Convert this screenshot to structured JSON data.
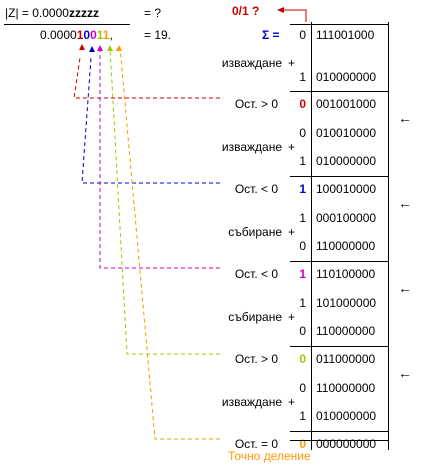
{
  "header": {
    "abs_z": "|Z| = 0.0000",
    "z_unknown": "zzzzz",
    "eq_q": "= ?",
    "prefix_result": "0.0000",
    "bits": [
      "1",
      "0",
      "0",
      "1",
      "1"
    ],
    "bits_colors": [
      "#cc0000",
      "#0000cc",
      "#cc00cc",
      "#99cc00",
      "#ff9900"
    ],
    "comma": ",",
    "eq_19": "= 19.",
    "question": "0/1 ?",
    "sigma": "Σ =",
    "sigma_sign": "0",
    "sigma_value": "111001000"
  },
  "rows": [
    {
      "op": "изваждане",
      "plus": "+",
      "sign": "1",
      "value": "010000000"
    },
    {
      "label": "Ост. > 0",
      "sign": "0",
      "value": "001001000",
      "sign_color": "#cc0000",
      "arrow": "←"
    },
    {
      "sign": "0",
      "value": "010010000"
    },
    {
      "op": "изваждане",
      "plus": "+",
      "sign": "1",
      "value": "010000000"
    },
    {
      "label": "Ост. < 0",
      "sign": "1",
      "value": "100010000",
      "sign_color": "#0000cc",
      "arrow": "←"
    },
    {
      "sign": "1",
      "value": "000100000"
    },
    {
      "op": "събиране",
      "plus": "+",
      "sign": "0",
      "value": "110000000"
    },
    {
      "label": "Ост. < 0",
      "sign": "1",
      "value": "110100000",
      "sign_color": "#cc00cc",
      "arrow": "←"
    },
    {
      "sign": "1",
      "value": "101000000"
    },
    {
      "op": "събиране",
      "plus": "+",
      "sign": "0",
      "value": "110000000"
    },
    {
      "label": "Ост. > 0",
      "sign": "0",
      "value": "011000000",
      "sign_color": "#99cc00",
      "arrow": "←"
    },
    {
      "sign": "0",
      "value": "110000000"
    },
    {
      "op": "изваждане",
      "plus": "+",
      "sign": "1",
      "value": "010000000"
    },
    {
      "label": "Ост. = 0",
      "sign": "0",
      "value": "000000000",
      "sign_color": "#ff9900"
    }
  ],
  "footer": {
    "exact": "Точно деление",
    "exact_color": "#ff9900"
  },
  "colors": {
    "red": "#cc0000",
    "blue": "#0000cc",
    "magenta": "#cc00cc",
    "green": "#99cc00",
    "orange": "#ff9900"
  }
}
